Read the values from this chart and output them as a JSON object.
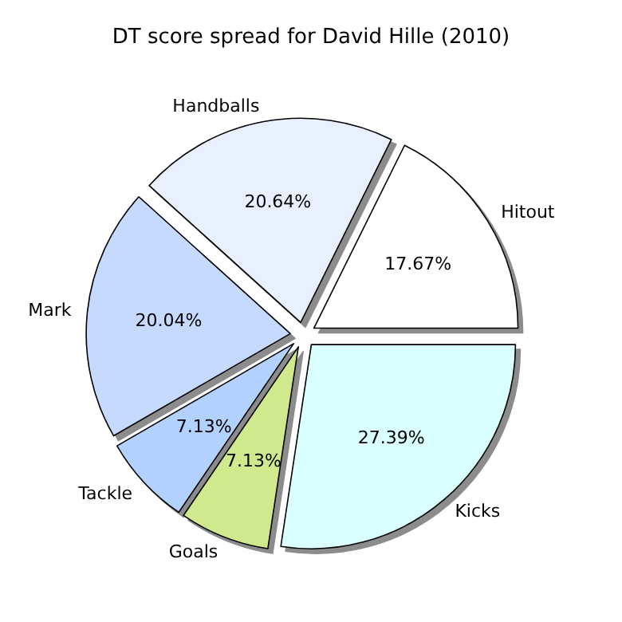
{
  "chart_data": {
    "type": "pie",
    "title": "DT score spread for David Hille (2010)",
    "categories": [
      "Hitout",
      "Handballs",
      "Mark",
      "Tackle",
      "Goals",
      "Kicks"
    ],
    "values": [
      17.67,
      20.64,
      20.04,
      7.13,
      7.13,
      27.39
    ],
    "colors": [
      "#ffffff",
      "#e8f0ff",
      "#c6d9ff",
      "#b3d1ff",
      "#d0e98d",
      "#d9ffff"
    ],
    "value_labels": [
      "17.67%",
      "20.64%",
      "20.04%",
      "7.13%",
      "7.13%",
      "27.39%"
    ],
    "legend": false
  }
}
